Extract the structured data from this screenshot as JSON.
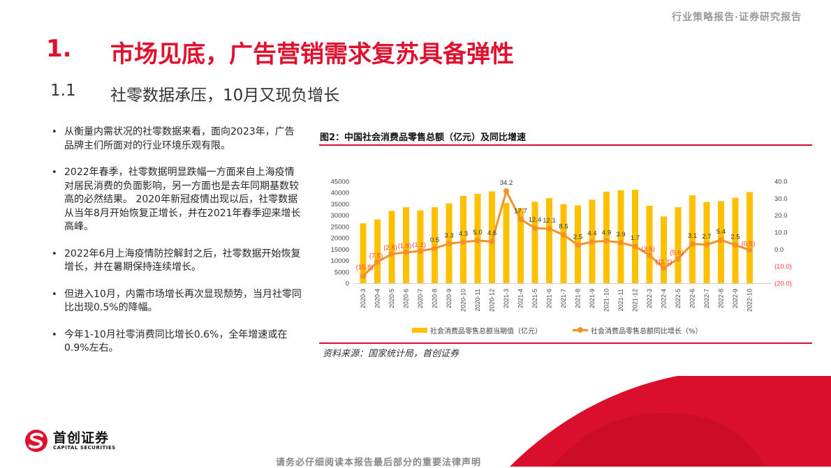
{
  "header": {
    "report_type": "行业策略报告·证券研究报告"
  },
  "section": {
    "number": "1.",
    "title": "市场见底，广告营销需求复苏具备弹性"
  },
  "subsection": {
    "number": "1.1",
    "title": "社零数据承压，10月又现负增长"
  },
  "bullets": [
    "从衡量内需状况的社零数据来看，面向2023年，广告品牌主们所面对的行业环境乐观有限。",
    "2022年春季，社零数据明显跌幅一方面来自上海疫情对居民消费的负面影响，另一方面也是去年同期基数较高的必然结果。 2020年新冠疫情出现以后，社零数据从当年8月开始恢复正增长，并在2021年春季迎来增长高峰。",
    "2022年6月上海疫情防控解封之后，社零数据开始恢复增长，并在暑期保持连续增长。",
    "但进入10月，内需市场增长再次显现颓势，当月社零同比出现0.5%的降幅。",
    "今年1-10月社零消费同比增长0.6%，全年增速或在0.9%左右。"
  ],
  "figure": {
    "title": "图2：中国社会消费品零售总额（亿元）及同比增速",
    "source": "资料来源：国家统计局，首创证券",
    "legend": {
      "bar": "社会消费品零售总额当期值（亿元）",
      "line": "社会消费品零售总额同比增长（%）"
    }
  },
  "chart_data": {
    "type": "bar+line",
    "title": "图2：中国社会消费品零售总额（亿元）及同比增速",
    "categories": [
      "2020-3",
      "2020-4",
      "2020-5",
      "2020-6",
      "2020-7",
      "2020-8",
      "2020-9",
      "2020-10",
      "2020-11",
      "2020-12",
      "2021-3",
      "2021-4",
      "2021-5",
      "2021-6",
      "2021-7",
      "2021-8",
      "2021-9",
      "2021-10",
      "2021-11",
      "2021-12",
      "2022-3",
      "2022-4",
      "2022-5",
      "2022-6",
      "2022-7",
      "2022-8",
      "2022-9",
      "2022-10"
    ],
    "series": [
      {
        "name": "社会消费品零售总额当期值（亿元）",
        "type": "bar",
        "axis": "left",
        "color": "#ffc000",
        "values": [
          26450,
          28180,
          31970,
          33530,
          32200,
          33570,
          35300,
          38580,
          39510,
          40570,
          35440,
          33150,
          35950,
          37590,
          34930,
          34400,
          36830,
          40450,
          41040,
          41270,
          34230,
          29480,
          33550,
          38800,
          35870,
          36260,
          37750,
          40270
        ]
      },
      {
        "name": "社会消费品零售总额同比增长（%）",
        "type": "line",
        "axis": "right",
        "color": "#f4922a",
        "values": [
          -15.8,
          -7.5,
          -2.8,
          -1.8,
          -1.1,
          0.5,
          3.3,
          4.3,
          5.0,
          4.6,
          34.2,
          17.7,
          12.4,
          12.1,
          8.5,
          2.5,
          4.4,
          4.9,
          3.9,
          1.7,
          -3.5,
          -11.1,
          -5.6,
          3.1,
          2.7,
          5.4,
          2.5,
          -0.5
        ],
        "labels": [
          "(15.8)",
          "(7.5)",
          "(2.8)",
          "(1.8)",
          "(1.1)",
          "0.5",
          "3.3",
          "4.3",
          "5.0",
          "4.6",
          "34.2",
          "17.7",
          "12.4",
          "12.1",
          "8.5",
          "2.5",
          "4.4",
          "4.9",
          "3.9",
          "1.7",
          "(3.5)",
          "(11.1)",
          "(5.6)",
          "3.1",
          "2.7",
          "5.4",
          "2.5",
          "(0.5)"
        ]
      }
    ],
    "y_left": {
      "ticks": [
        "0",
        "5000",
        "10000",
        "15000",
        "20000",
        "25000",
        "30000",
        "35000",
        "40000",
        "45000"
      ],
      "range": [
        0,
        45000
      ]
    },
    "y_right": {
      "ticks": [
        "(20.0)",
        "(10.0)",
        "0.0",
        "10.0",
        "20.0",
        "30.0",
        "40.0"
      ],
      "range": [
        -20,
        40
      ]
    },
    "negative_label_color": "#ff3b3b",
    "legend_position": "bottom",
    "grid": false
  },
  "footer": {
    "logo_cn": "首创证券",
    "logo_en": "CAPITAL SECURITIES",
    "disclaimer": "请务必仔细阅读本报告最后部分的重要法律声明"
  },
  "colors": {
    "brand_red": "#e0102f",
    "bar": "#ffc000",
    "line": "#f4922a"
  }
}
